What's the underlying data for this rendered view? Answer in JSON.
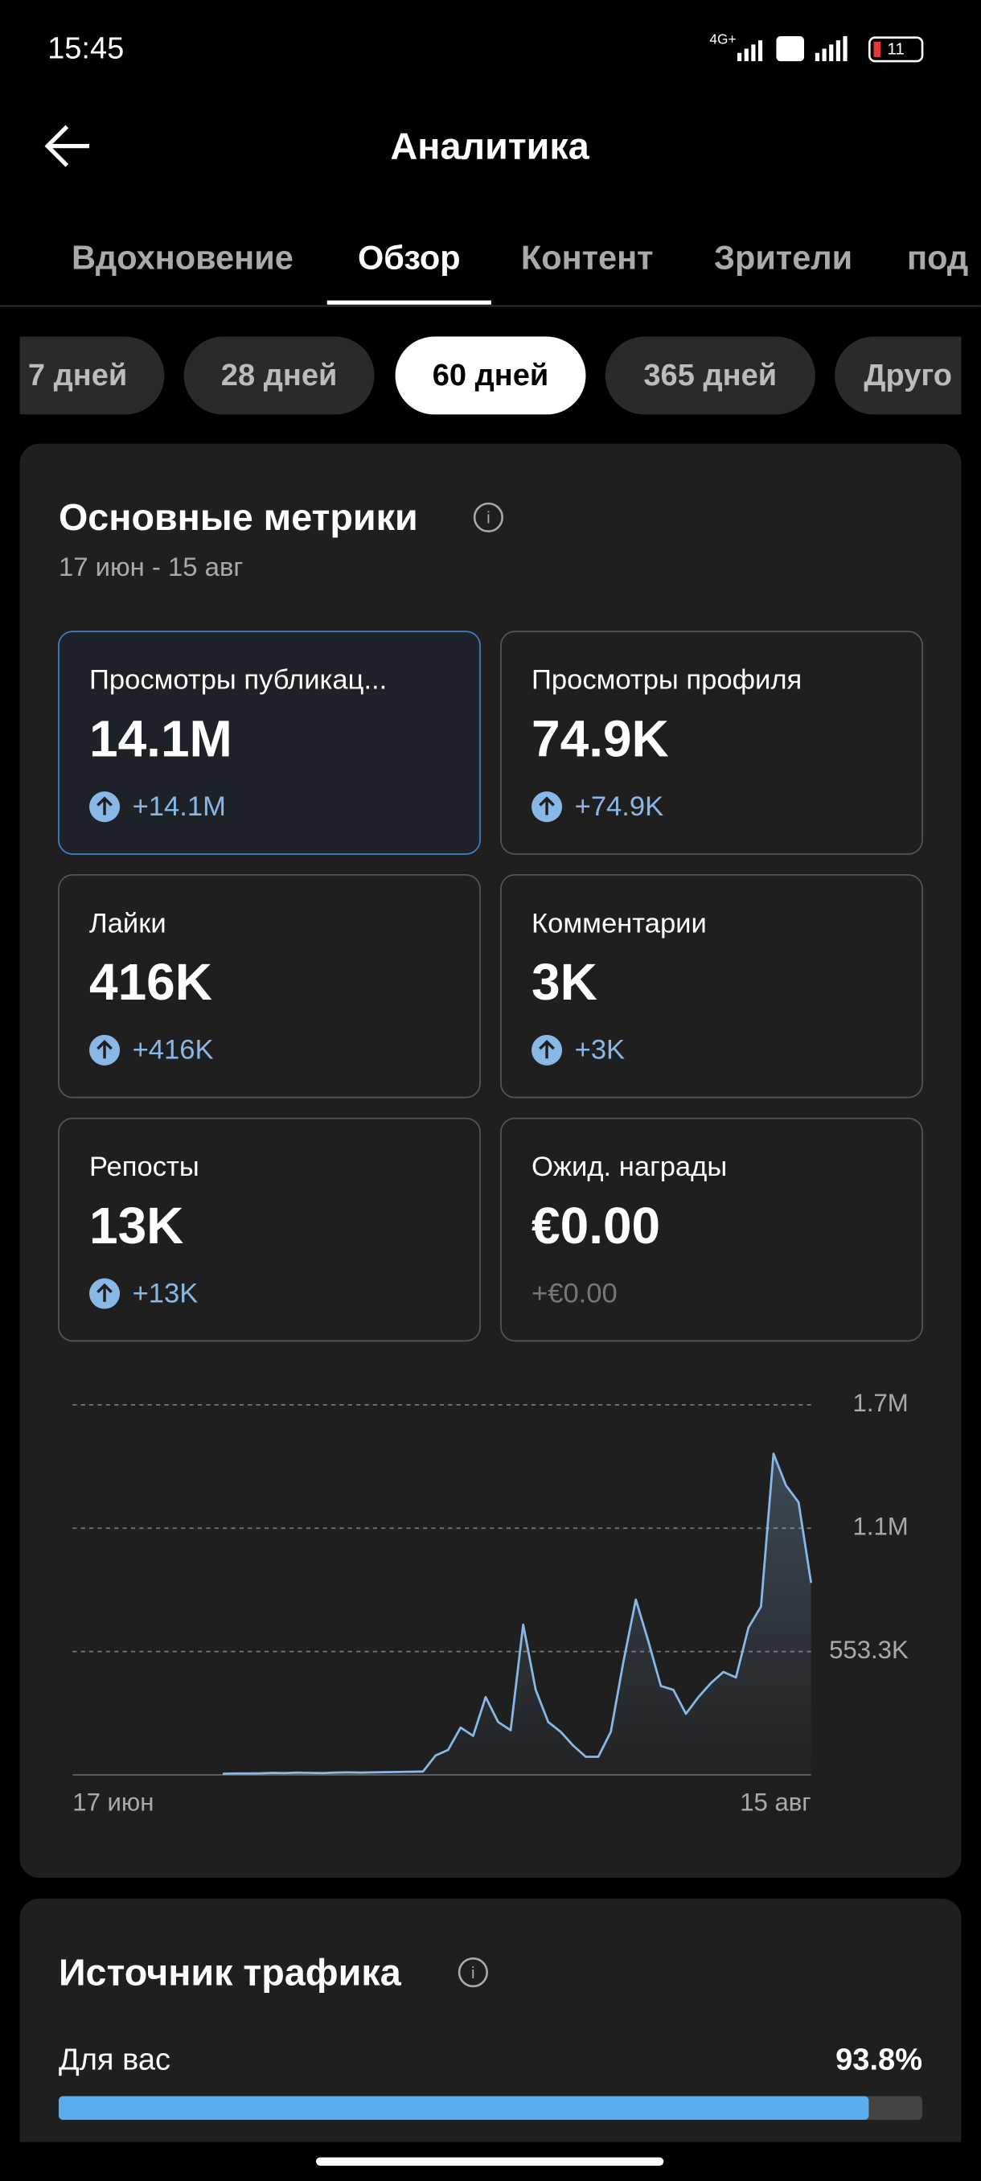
{
  "status_bar": {
    "time": "15:45",
    "network": "4G+",
    "battery": "11"
  },
  "header": {
    "title": "Аналитика"
  },
  "tabs": [
    "Вдохновение",
    "Обзор",
    "Контент",
    "Зрители",
    "под"
  ],
  "periods": [
    "7 дней",
    "28 дней",
    "60 дней",
    "365 дней",
    "Друго"
  ],
  "metrics": {
    "title": "Основные метрики",
    "date_range": "17 июн - 15 авг",
    "cards": [
      {
        "label": "Просмотры публикац...",
        "value": "14.1M",
        "change": "+14.1M",
        "icon": "arrow-up",
        "selected": true
      },
      {
        "label": "Просмотры профиля",
        "value": "74.9K",
        "change": "+74.9K",
        "icon": "arrow-up"
      },
      {
        "label": "Лайки",
        "value": "416K",
        "change": "+416K",
        "icon": "arrow-up"
      },
      {
        "label": "Комментарии",
        "value": "3K",
        "change": "+3K",
        "icon": "arrow-up"
      },
      {
        "label": "Репосты",
        "value": "13K",
        "change": "+13K",
        "icon": "arrow-up"
      },
      {
        "label": "Ожид. награды",
        "value": "€0.00",
        "change": "+€0.00"
      }
    ]
  },
  "chart_data": {
    "type": "area",
    "color": "#8ab8e6",
    "categories": [
      "17 июн",
      null,
      null,
      null,
      null,
      null,
      null,
      null,
      null,
      null,
      null,
      null,
      null,
      null,
      null,
      null,
      null,
      null,
      null,
      null,
      null,
      null,
      null,
      null,
      null,
      null,
      null,
      null,
      null,
      null,
      null,
      null,
      null,
      null,
      null,
      null,
      null,
      null,
      null,
      null,
      null,
      null,
      null,
      null,
      null,
      null,
      null,
      null,
      null,
      null,
      null,
      null,
      null,
      null,
      null,
      null,
      null,
      null,
      null,
      "15 авг"
    ],
    "values": [
      null,
      null,
      null,
      null,
      null,
      null,
      null,
      null,
      null,
      null,
      null,
      null,
      5000,
      6000,
      6000,
      7000,
      9000,
      8000,
      10000,
      9000,
      8000,
      10000,
      11000,
      10000,
      11000,
      12000,
      13000,
      14000,
      15000,
      87000,
      112000,
      212000,
      175000,
      349000,
      237000,
      200000,
      674000,
      381000,
      237000,
      193000,
      131000,
      81000,
      81000,
      193000,
      505000,
      786000,
      599000,
      399000,
      381000,
      274000,
      349000,
      412000,
      462000,
      437000,
      661000,
      755000,
      1441000,
      1298000,
      1223000,
      861000
    ],
    "ylim": [
      0,
      1659900
    ],
    "yticks": [
      {
        "value": 553300,
        "label": "553.3K"
      },
      {
        "value": 1106600,
        "label": "1.1M"
      },
      {
        "value": 1659900,
        "label": "1.7M"
      }
    ],
    "grid": true
  },
  "traffic": {
    "title": "Источник трафика",
    "sources": [
      {
        "label": "Для вас",
        "value": 93.8,
        "value_label": "93.8%"
      }
    ]
  }
}
